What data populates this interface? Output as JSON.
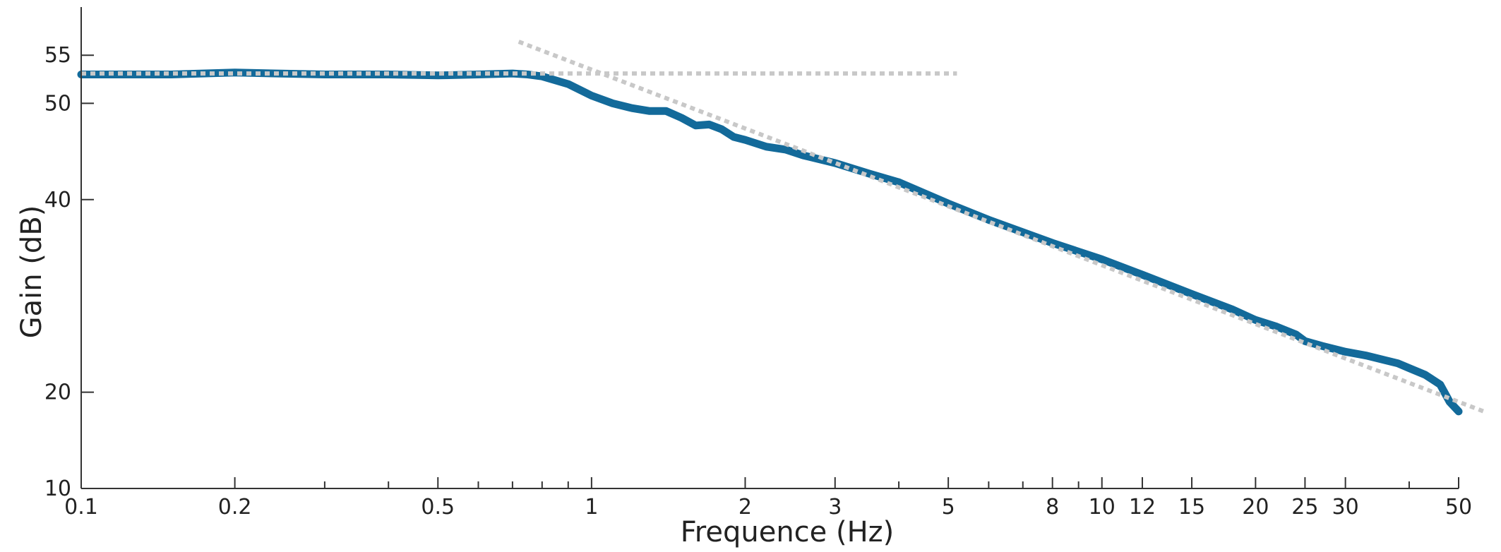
{
  "chart_data": {
    "type": "line",
    "title": "",
    "xlabel": "Frequence (Hz)",
    "ylabel": "Gain (dB)",
    "xscale": "log",
    "xlim": [
      0.1,
      50
    ],
    "ylim": [
      10,
      60
    ],
    "grid": false,
    "legend": "none",
    "x_ticks": [
      {
        "value": 0.1,
        "label": "0.1"
      },
      {
        "value": 0.2,
        "label": "0.2"
      },
      {
        "value": 0.5,
        "label": "0.5"
      },
      {
        "value": 1,
        "label": "1"
      },
      {
        "value": 2,
        "label": "2"
      },
      {
        "value": 3,
        "label": "3"
      },
      {
        "value": 5,
        "label": "5"
      },
      {
        "value": 8,
        "label": "8"
      },
      {
        "value": 10,
        "label": "10"
      },
      {
        "value": 12,
        "label": "12"
      },
      {
        "value": 15,
        "label": "15"
      },
      {
        "value": 20,
        "label": "20"
      },
      {
        "value": 25,
        "label": "25"
      },
      {
        "value": 30,
        "label": "30"
      },
      {
        "value": 50,
        "label": "50"
      }
    ],
    "x_minor_ticks": [
      0.3,
      0.4,
      0.6,
      0.7,
      0.8,
      0.9,
      4,
      6,
      7,
      9,
      40
    ],
    "y_ticks": [
      {
        "value": 10,
        "label": "10"
      },
      {
        "value": 20,
        "label": "20"
      },
      {
        "value": 40,
        "label": "40"
      },
      {
        "value": 50,
        "label": "50"
      },
      {
        "value": 55,
        "label": "55"
      }
    ],
    "series": [
      {
        "style": "solid-thick",
        "color": "#136a9a",
        "x": [
          0.1,
          0.15,
          0.2,
          0.3,
          0.4,
          0.5,
          0.6,
          0.7,
          0.75,
          0.8,
          0.9,
          1.0,
          1.1,
          1.2,
          1.3,
          1.4,
          1.5,
          1.6,
          1.7,
          1.8,
          1.9,
          2.0,
          2.2,
          2.4,
          2.6,
          3.0,
          3.5,
          4.0,
          5.0,
          6.0,
          8.0,
          10.0,
          12.0,
          15.0,
          18.0,
          20.0,
          22.0,
          24.0,
          25.0,
          27.0,
          30.0,
          33.0,
          36.0,
          38.0,
          40.0,
          43.0,
          46.0,
          48.0,
          50.0
        ],
        "values": [
          53,
          53,
          53.2,
          53,
          53,
          52.9,
          53,
          53.1,
          53,
          52.8,
          52,
          50.8,
          50,
          49.5,
          49.2,
          49.2,
          48.5,
          47.7,
          47.8,
          47.3,
          46.5,
          46.2,
          45.5,
          45.2,
          44.6,
          43.8,
          42.7,
          41.8,
          39.6,
          37.9,
          35.5,
          33.8,
          32.2,
          30.2,
          28.6,
          27.5,
          26.8,
          26.0,
          25.3,
          24.8,
          24.2,
          23.8,
          23.3,
          23.0,
          22.5,
          21.8,
          20.8,
          19.0,
          18.0
        ]
      },
      {
        "style": "dotted",
        "color": "#c8c8c8",
        "x": [
          0.1,
          5.2
        ],
        "values": [
          53.1,
          53.1
        ]
      },
      {
        "style": "dotted",
        "color": "#c8c8c8",
        "x": [
          0.72,
          56
        ],
        "values": [
          56.4,
          18.0
        ]
      }
    ]
  }
}
